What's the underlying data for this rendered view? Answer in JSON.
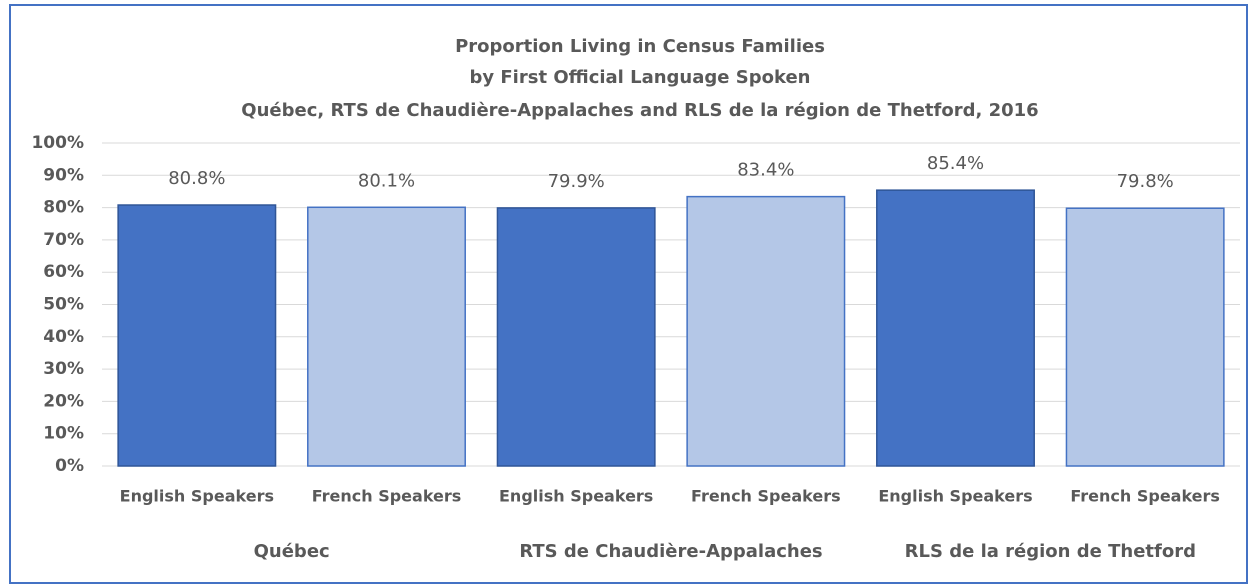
{
  "chart_data": {
    "type": "bar",
    "title": [
      "Proportion Living in Census Families",
      "by First Official Language Spoken",
      "Québec, RTS de Chaudière-Appalaches and RLS de la région de Thetford, 2016"
    ],
    "categories": [
      "English Speakers",
      "French Speakers",
      "English Speakers",
      "French Speakers",
      "English Speakers",
      "French Speakers"
    ],
    "groups": [
      "Québec",
      "RTS de Chaudière-Appalaches",
      "RLS de la région de Thetford"
    ],
    "values": [
      80.8,
      80.1,
      79.9,
      83.4,
      85.4,
      79.8
    ],
    "value_labels": [
      "80.8%",
      "80.1%",
      "79.9%",
      "83.4%",
      "85.4%",
      "79.8%"
    ],
    "colors": [
      "#4472c4",
      "#b4c7e7",
      "#4472c4",
      "#b4c7e7",
      "#4472c4",
      "#b4c7e7"
    ],
    "ylim": [
      0,
      100
    ],
    "yticks": [
      {
        "value": 0,
        "label": "0%"
      },
      {
        "value": 10,
        "label": "10%"
      },
      {
        "value": 20,
        "label": "20%"
      },
      {
        "value": 30,
        "label": "30%"
      },
      {
        "value": 40,
        "label": "40%"
      },
      {
        "value": 50,
        "label": "50%"
      },
      {
        "value": 60,
        "label": "60%"
      },
      {
        "value": 70,
        "label": "70%"
      },
      {
        "value": 80,
        "label": "80%"
      },
      {
        "value": 90,
        "label": "90%"
      },
      {
        "value": 100,
        "label": "100%"
      }
    ],
    "grid": true
  }
}
